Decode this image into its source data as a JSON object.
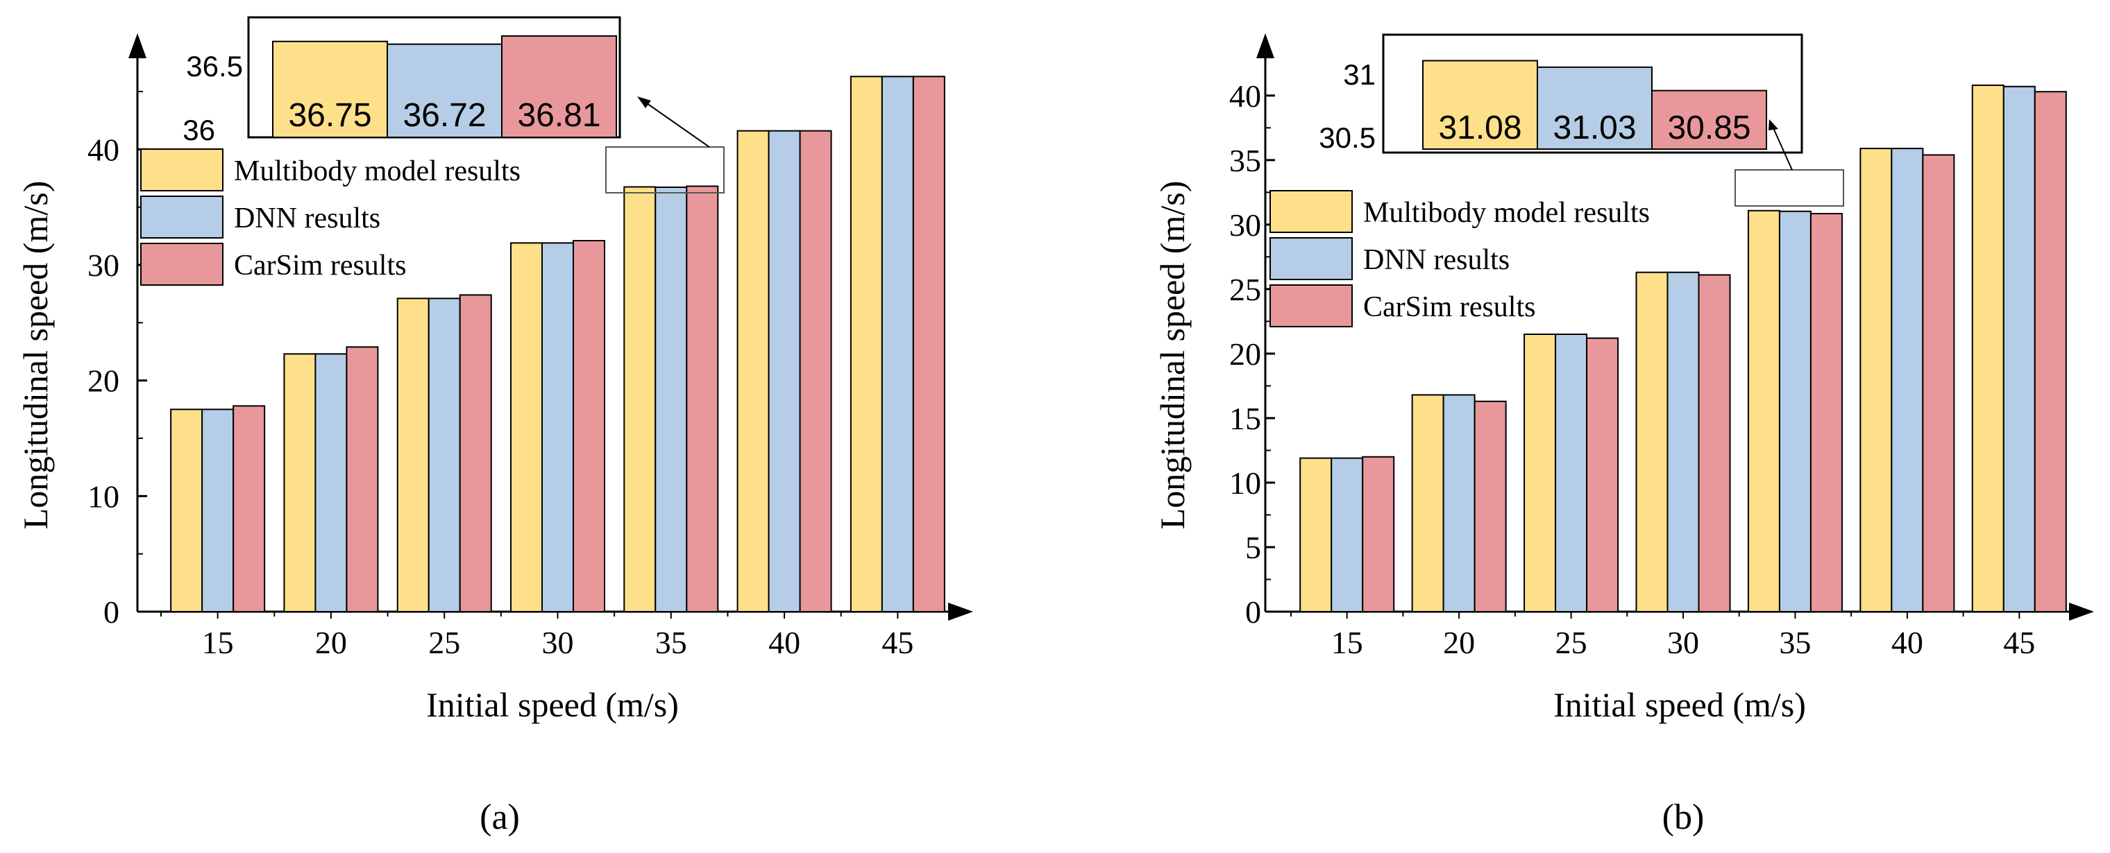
{
  "colors": {
    "multibody": "#fde089",
    "dnn": "#b5cde6",
    "carsim": "#e8989b",
    "axis": "#000000"
  },
  "chart_data": [
    {
      "type": "bar",
      "panel_label": "(a)",
      "xlabel": "Initial speed (m/s)",
      "ylabel": "Longitudinal speed (m/s)",
      "categories": [
        "15",
        "20",
        "25",
        "30",
        "35",
        "40",
        "45"
      ],
      "ylim": [
        0,
        48
      ],
      "yticks": [
        0,
        10,
        20,
        30,
        40
      ],
      "series": [
        {
          "name": "Multibody model results",
          "color_key": "multibody",
          "values": [
            17.5,
            22.3,
            27.1,
            31.9,
            36.75,
            41.6,
            46.3
          ]
        },
        {
          "name": "DNN results",
          "color_key": "dnn",
          "values": [
            17.5,
            22.3,
            27.1,
            31.9,
            36.72,
            41.6,
            46.3
          ]
        },
        {
          "name": "CarSim results",
          "color_key": "carsim",
          "values": [
            17.8,
            22.9,
            27.4,
            32.1,
            36.81,
            41.6,
            46.3
          ]
        }
      ],
      "legend": [
        "Multibody model results",
        "DNN results",
        "CarSim results"
      ],
      "inset": {
        "category": "35",
        "ylim": [
          35.7,
          36.9
        ],
        "yticks": [
          "36",
          "36.5"
        ],
        "values": [
          36.75,
          36.72,
          36.81
        ],
        "labels": [
          "36.75",
          "36.72",
          "36.81"
        ]
      }
    },
    {
      "type": "bar",
      "panel_label": "(b)",
      "xlabel": "Initial speed (m/s)",
      "ylabel": "Longitudinal speed (m/s)",
      "categories": [
        "15",
        "20",
        "25",
        "30",
        "35",
        "40",
        "45"
      ],
      "ylim": [
        0,
        43
      ],
      "yticks": [
        0,
        5,
        10,
        15,
        20,
        25,
        30,
        35,
        40
      ],
      "series": [
        {
          "name": "Multibody model results",
          "color_key": "multibody",
          "values": [
            11.9,
            16.8,
            21.5,
            26.3,
            31.08,
            35.9,
            40.8
          ]
        },
        {
          "name": "DNN results",
          "color_key": "dnn",
          "values": [
            11.9,
            16.8,
            21.5,
            26.3,
            31.03,
            35.9,
            40.7
          ]
        },
        {
          "name": "CarSim results",
          "color_key": "carsim",
          "values": [
            12.0,
            16.3,
            21.2,
            26.1,
            30.85,
            35.4,
            40.3
          ]
        }
      ],
      "legend": [
        "Multibody model results",
        "DNN results",
        "CarSim results"
      ],
      "inset": {
        "category": "35",
        "ylim": [
          30.4,
          31.2
        ],
        "yticks": [
          "30.5",
          "31"
        ],
        "values": [
          31.08,
          31.03,
          30.85
        ],
        "labels": [
          "31.08",
          "31.03",
          "30.85"
        ]
      }
    }
  ]
}
